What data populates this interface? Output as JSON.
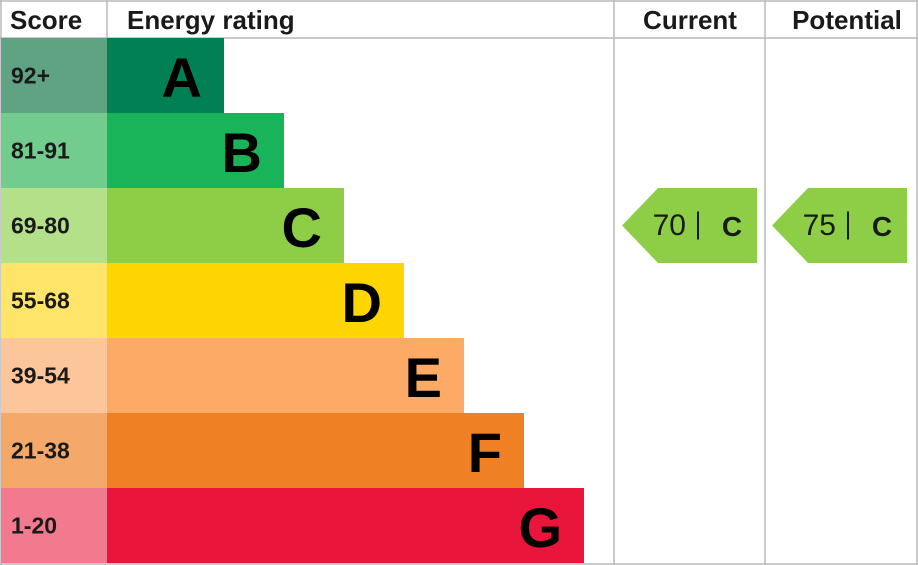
{
  "header": {
    "score": "Score",
    "rating": "Energy rating",
    "current": "Current",
    "potential": "Potential"
  },
  "bands": [
    {
      "range": "92+",
      "letter": "A"
    },
    {
      "range": "81-91",
      "letter": "B"
    },
    {
      "range": "69-80",
      "letter": "C"
    },
    {
      "range": "55-68",
      "letter": "D"
    },
    {
      "range": "39-54",
      "letter": "E"
    },
    {
      "range": "21-38",
      "letter": "F"
    },
    {
      "range": "1-20",
      "letter": "G"
    }
  ],
  "current": {
    "score": 70,
    "rating": "C"
  },
  "potential": {
    "score": 75,
    "rating": "C"
  }
}
